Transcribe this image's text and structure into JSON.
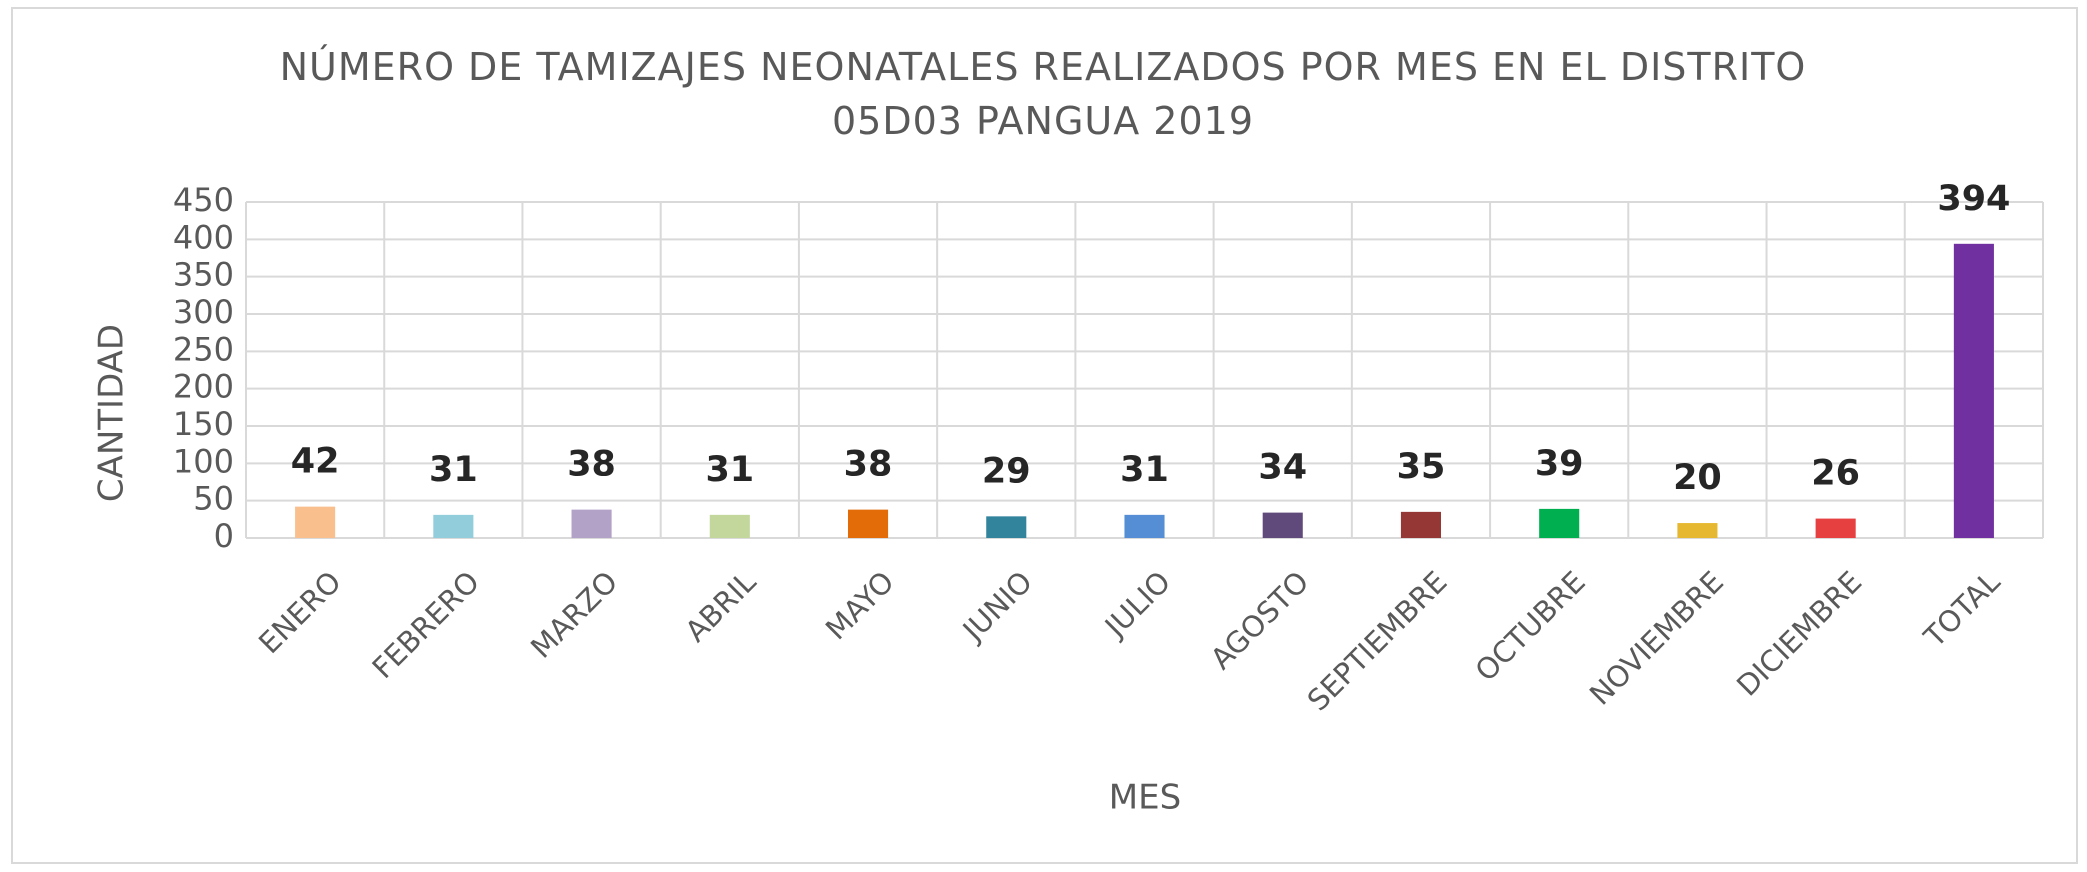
{
  "chart_data": {
    "type": "bar",
    "title": "NÚMERO DE TAMIZAJES NEONATALES REALIZADOS POR MES EN EL DISTRITO 05D03 PANGUA 2019",
    "x_label": "MES",
    "y_label": "CANTIDAD",
    "categories": [
      "ENERO",
      "FEBRERO",
      "MARZO",
      "ABRIL",
      "MAYO",
      "JUNIO",
      "JULIO",
      "AGOSTO",
      "SEPTIEMBRE",
      "OCTUBRE",
      "NOVIEMBRE",
      "DICIEMBRE",
      "TOTAL"
    ],
    "values": [
      42,
      31,
      38,
      31,
      38,
      29,
      31,
      34,
      35,
      39,
      20,
      26,
      394
    ],
    "colors": [
      "#f9c08e",
      "#92cddc",
      "#b3a2c7",
      "#c3d69b",
      "#e36c09",
      "#31849b",
      "#558ed5",
      "#604a7b",
      "#953735",
      "#00b050",
      "#e6b832",
      "#e64040",
      "#7030a0"
    ],
    "ylim": [
      0,
      450
    ],
    "yticks": [
      0,
      50,
      100,
      150,
      200,
      250,
      300,
      350,
      400,
      450
    ],
    "grid": true
  }
}
